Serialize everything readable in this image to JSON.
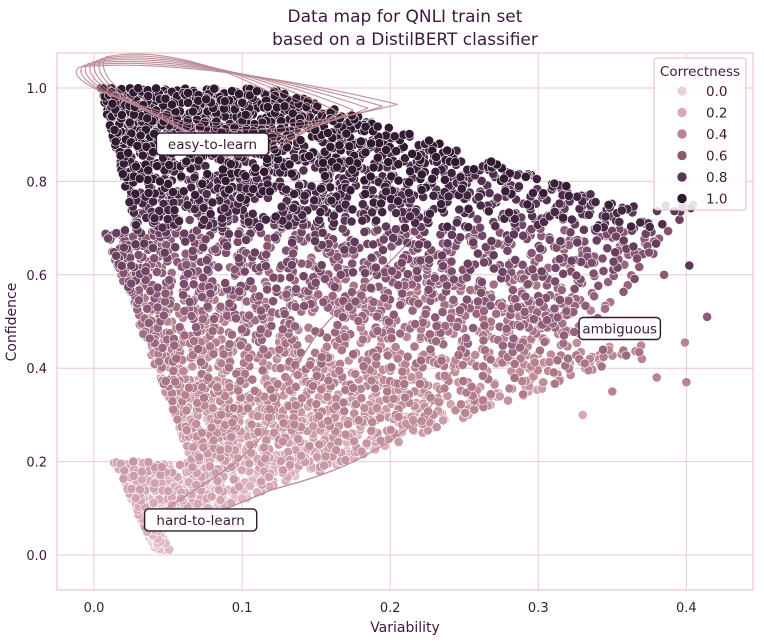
{
  "chart_data": {
    "type": "scatter",
    "title": [
      "Data map for QNLI train set",
      "based on a DistilBERT classifier"
    ],
    "xlabel": "Variability",
    "ylabel": "Confidence",
    "xlim": [
      -0.025,
      0.445
    ],
    "ylim": [
      -0.075,
      1.075
    ],
    "xticks": [
      0.0,
      0.1,
      0.2,
      0.3,
      0.4
    ],
    "xtick_labels": [
      "0.0",
      "0.1",
      "0.2",
      "0.3",
      "0.4"
    ],
    "yticks": [
      0.0,
      0.2,
      0.4,
      0.6,
      0.8,
      1.0
    ],
    "ytick_labels": [
      "0.0",
      "0.2",
      "0.4",
      "0.6",
      "0.8",
      "1.0"
    ],
    "grid": true,
    "hue": "Correctness",
    "legend": {
      "title": "Correctness",
      "placement": "top-right",
      "entries": [
        "0.0",
        "0.2",
        "0.4",
        "0.6",
        "0.8",
        "1.0"
      ],
      "values": [
        0.0,
        0.2,
        0.4,
        0.6,
        0.8,
        1.0
      ]
    },
    "colors": {
      "0.0": "#ead3dc",
      "0.2": "#d5a9b6",
      "0.4": "#b98490",
      "0.6": "#8d5b78",
      "0.8": "#5a3555",
      "1.0": "#2f1a30"
    },
    "annotations": [
      {
        "text": "easy-to-learn",
        "x": 0.08,
        "y": 0.88
      },
      {
        "text": "ambiguous",
        "x": 0.355,
        "y": 0.485
      },
      {
        "text": "hard-to-learn",
        "x": 0.072,
        "y": 0.075
      }
    ],
    "regions": [
      {
        "name": "easy-to-learn",
        "variability": [
          0.02,
          0.2
        ],
        "confidence": [
          0.68,
          0.99
        ],
        "correctness": [
          0.8,
          1.0
        ]
      },
      {
        "name": "ambiguous",
        "variability": [
          0.12,
          0.41
        ],
        "confidence": [
          0.3,
          0.8
        ],
        "correctness": [
          0.3,
          0.8
        ]
      },
      {
        "name": "hard-to-learn",
        "variability": [
          0.01,
          0.27
        ],
        "confidence": [
          0.01,
          0.45
        ],
        "correctness": [
          0.0,
          0.3
        ]
      }
    ],
    "outliers": [
      {
        "x": 0.414,
        "y": 0.51,
        "c": 0.6
      },
      {
        "x": 0.402,
        "y": 0.62,
        "c": 0.8
      },
      {
        "x": 0.4,
        "y": 0.37,
        "c": 0.4
      },
      {
        "x": 0.399,
        "y": 0.455,
        "c": 0.4
      },
      {
        "x": 0.385,
        "y": 0.6,
        "c": 0.6
      },
      {
        "x": 0.38,
        "y": 0.38,
        "c": 0.4
      },
      {
        "x": 0.37,
        "y": 0.42,
        "c": 0.4
      },
      {
        "x": 0.35,
        "y": 0.35,
        "c": 0.4
      },
      {
        "x": 0.33,
        "y": 0.3,
        "c": 0.2
      },
      {
        "x": 0.345,
        "y": 0.71,
        "c": 0.8
      },
      {
        "x": 0.355,
        "y": 0.66,
        "c": 0.6
      }
    ],
    "contour": {
      "color": "#b98490",
      "note": "kernel density contour lines"
    }
  }
}
